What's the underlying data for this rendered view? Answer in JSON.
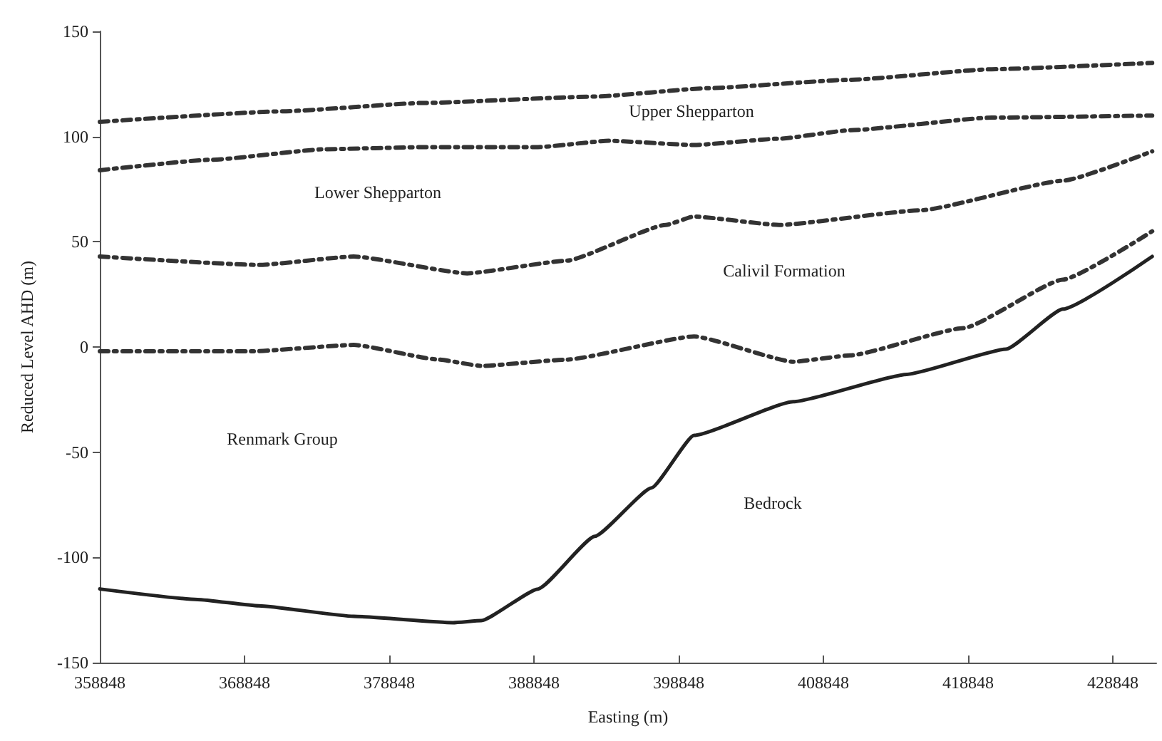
{
  "chart_data": {
    "type": "line",
    "xlabel": "Easting (m)",
    "ylabel": "Reduced Level AHD (m)",
    "xlim": [
      358848,
      431848
    ],
    "xticks": [
      358848,
      368848,
      378848,
      388848,
      398848,
      408848,
      418848,
      428848
    ],
    "ylim": [
      -150,
      150
    ],
    "yticks": [
      -150,
      -100,
      -50,
      0,
      50,
      100,
      150
    ],
    "grid": false,
    "marker": "none",
    "series": [
      {
        "color": "#333333",
        "line_style": "dashed",
        "x": [
          358848,
          371490,
          381290,
          393050,
          400890,
          410690,
          420490,
          431564
        ],
        "values": [
          107,
          112,
          116,
          119,
          123,
          127,
          132,
          135
        ]
      },
      {
        "color": "#333333",
        "line_style": "dashed",
        "x": [
          358848,
          366590,
          374430,
          381290,
          389130,
          394030,
          399910,
          405790,
          410690,
          420490,
          431564
        ],
        "values": [
          84,
          89,
          94,
          95,
          95,
          98,
          96,
          99,
          103,
          109,
          110
        ]
      },
      {
        "color": "#333333",
        "line_style": "dashed",
        "x": [
          358848,
          369824,
          376390,
          384230,
          391090,
          397950,
          399910,
          405790,
          415590,
          425390,
          431564
        ],
        "values": [
          43,
          39,
          43,
          35,
          41,
          58,
          62,
          58,
          65,
          79,
          93
        ]
      },
      {
        "color": "#333333",
        "line_style": "dashed",
        "x": [
          358848,
          369530,
          376390,
          382270,
          385210,
          391090,
          399910,
          406770,
          410690,
          418530,
          425390,
          431564
        ],
        "values": [
          -2,
          -2,
          1,
          -6,
          -9,
          -6,
          5,
          -7,
          -4,
          9,
          32,
          55
        ]
      },
      {
        "color": "#222222",
        "line_style": "solid",
        "x": [
          358848,
          365610,
          369824,
          376390,
          383250,
          385210,
          389130,
          393050,
          396970,
          399910,
          406770,
          414610,
          421470,
          425390,
          431564
        ],
        "values": [
          -115,
          -120,
          -123,
          -128,
          -131,
          -130,
          -115,
          -90,
          -67,
          -42,
          -26,
          -13,
          -1,
          18,
          43
        ]
      }
    ],
    "annotations": [
      "Upper Shepparton",
      "Lower Shepparton",
      "Calivil Formation",
      "Renmark Group",
      "Bedrock"
    ]
  }
}
